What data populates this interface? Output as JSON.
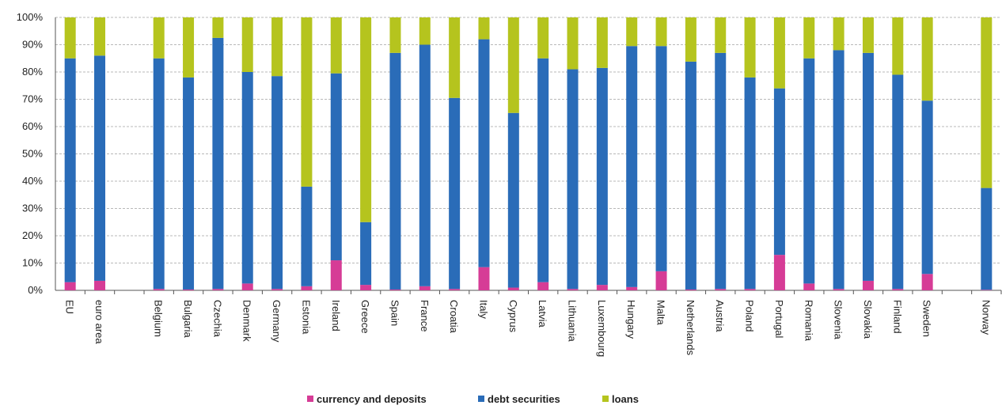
{
  "chart_data": {
    "type": "bar",
    "stacked": true,
    "categories": [
      "EU",
      "euro area",
      "",
      "Belgium",
      "Bulgaria",
      "Czechia",
      "Denmark",
      "Germany",
      "Estonia",
      "Ireland",
      "Greece",
      "Spain",
      "France",
      "Croatia",
      "Italy",
      "Cyprus",
      "Latvia",
      "Lithuania",
      "Luxembourg",
      "Hungary",
      "Malta",
      "Netherlands",
      "Austria",
      "Poland",
      "Portugal",
      "Romania",
      "Slovenia",
      "Slovakia",
      "Finland",
      "Sweden",
      "",
      "Norway"
    ],
    "series": [
      {
        "name": "currency and deposits",
        "color": "#d63c96",
        "values": [
          3,
          3.5,
          null,
          0.5,
          0.3,
          0.5,
          2.5,
          0.5,
          1.5,
          11,
          2,
          0.3,
          1.5,
          0.5,
          8.5,
          1,
          3,
          0.5,
          2,
          1.2,
          7,
          0.3,
          0.5,
          0.5,
          13,
          2.5,
          0.5,
          3.5,
          0.5,
          6,
          null,
          0.2
        ]
      },
      {
        "name": "debt securities",
        "color": "#2a6cb8",
        "values": [
          82,
          82.5,
          null,
          84.5,
          77.7,
          92,
          77.5,
          78,
          36.5,
          68.5,
          23,
          86.7,
          88.5,
          70,
          83.5,
          64,
          82,
          80.5,
          79.5,
          88.3,
          82.5,
          83.5,
          86.5,
          77.5,
          61,
          82.5,
          87.5,
          83.5,
          78.5,
          63.5,
          null,
          37.3
        ]
      },
      {
        "name": "loans",
        "color": "#b5c41e",
        "values": [
          15,
          14,
          0,
          15,
          22,
          7.5,
          20,
          21.5,
          62,
          20.5,
          75,
          13,
          10,
          29.5,
          8,
          35,
          15,
          19,
          18.5,
          10.5,
          10.5,
          16.2,
          13,
          22,
          26,
          15,
          12,
          13,
          21,
          30.5,
          null,
          62.5
        ]
      }
    ],
    "ylim": [
      0,
      100
    ],
    "yticks": [
      "0%",
      "10%",
      "20%",
      "30%",
      "40%",
      "50%",
      "60%",
      "70%",
      "80%",
      "90%",
      "100%"
    ],
    "grid": true,
    "legend_position": "bottom"
  }
}
